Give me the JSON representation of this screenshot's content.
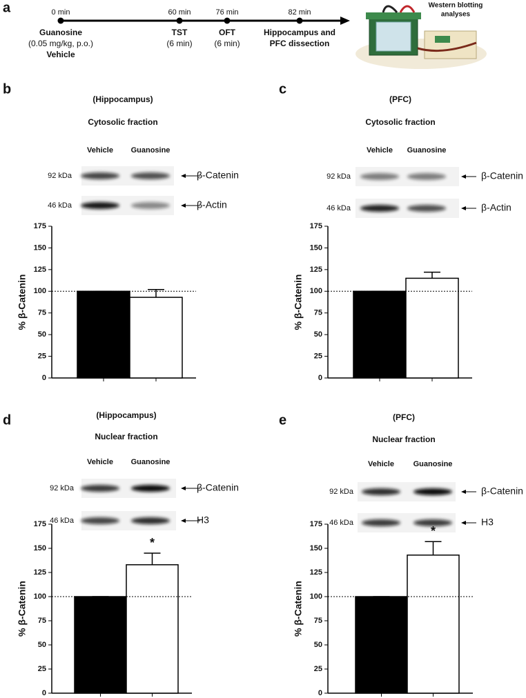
{
  "timeline": {
    "panel_label": "a",
    "points": [
      {
        "time": "0 min",
        "lines": [
          "Guanosine",
          "(0.05 mg/kg, p.o.)",
          "Vehicle"
        ]
      },
      {
        "time": "60 min",
        "lines": [
          "TST",
          "(6 min)"
        ]
      },
      {
        "time": "76 min",
        "lines": [
          "OFT",
          "(6 min)"
        ]
      },
      {
        "time": "82 min",
        "lines": [
          "Hippocampus and",
          "PFC dissection"
        ]
      }
    ],
    "end_lines": [
      "Western blotting",
      "analyses"
    ]
  },
  "chart_data": [
    {
      "type": "bar",
      "panel_label": "b",
      "title": "(Hippocampus)",
      "subtitle": "Cytosolic fraction",
      "categories": [
        "Vehicle",
        "Guanosine"
      ],
      "blot_rows": [
        {
          "kda": "92 kDa",
          "protein": "β-Catenin"
        },
        {
          "kda": "46 kDa",
          "protein": "β-Actin"
        }
      ],
      "ylabel": "% β-Catenin",
      "values": [
        100,
        93
      ],
      "errors": [
        0,
        9
      ],
      "colors": [
        "#000000",
        "#ffffff"
      ],
      "ylim": [
        0,
        175
      ],
      "yticks": [
        0,
        25,
        50,
        75,
        100,
        125,
        150,
        175
      ],
      "reference_line": 100
    },
    {
      "type": "bar",
      "panel_label": "c",
      "title": "(PFC)",
      "subtitle": "Cytosolic fraction",
      "categories": [
        "Vehicle",
        "Guanosine"
      ],
      "blot_rows": [
        {
          "kda": "92 kDa",
          "protein": "β-Catenin"
        },
        {
          "kda": "46 kDa",
          "protein": "β-Actin"
        }
      ],
      "ylabel": "% β-Catenin",
      "values": [
        100,
        115
      ],
      "errors": [
        0,
        7
      ],
      "colors": [
        "#000000",
        "#ffffff"
      ],
      "ylim": [
        0,
        175
      ],
      "yticks": [
        0,
        25,
        50,
        75,
        100,
        125,
        150,
        175
      ],
      "reference_line": 100
    },
    {
      "type": "bar",
      "panel_label": "d",
      "title": "(Hippocampus)",
      "subtitle": "Nuclear fraction",
      "categories": [
        "Vehicle",
        "Guanosine"
      ],
      "blot_rows": [
        {
          "kda": "92 kDa",
          "protein": "β-Catenin"
        },
        {
          "kda": "46 kDa",
          "protein": "H3"
        }
      ],
      "ylabel": "% β-Catenin",
      "values": [
        100,
        133
      ],
      "errors": [
        0,
        12
      ],
      "value_annotations": [
        null,
        "*"
      ],
      "colors": [
        "#000000",
        "#ffffff"
      ],
      "ylim": [
        0,
        175
      ],
      "yticks": [
        0,
        25,
        50,
        75,
        100,
        125,
        150,
        175
      ],
      "reference_line": 100
    },
    {
      "type": "bar",
      "panel_label": "e",
      "title": "(PFC)",
      "subtitle": "Nuclear fraction",
      "categories": [
        "Vehicle",
        "Guanosine"
      ],
      "blot_rows": [
        {
          "kda": "92 kDa",
          "protein": "β-Catenin"
        },
        {
          "kda": "46 kDa",
          "protein": "H3"
        }
      ],
      "ylabel": "% β-Catenin",
      "values": [
        100,
        143
      ],
      "errors": [
        0,
        14
      ],
      "value_annotations": [
        null,
        "*"
      ],
      "colors": [
        "#000000",
        "#ffffff"
      ],
      "ylim": [
        0,
        175
      ],
      "yticks": [
        0,
        25,
        50,
        75,
        100,
        125,
        150,
        175
      ],
      "reference_line": 100
    }
  ]
}
